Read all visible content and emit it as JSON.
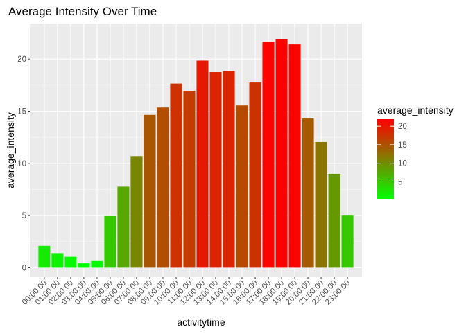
{
  "chart_data": {
    "type": "bar",
    "title": "Average Intensity Over Time",
    "xlabel": "activitytime",
    "ylabel": "average_intensity",
    "categories": [
      "00:00:00",
      "01:00:00",
      "02:00:00",
      "03:00:00",
      "04:00:00",
      "05:00:00",
      "06:00:00",
      "07:00:00",
      "08:00:00",
      "09:00:00",
      "10:00:00",
      "11:00:00",
      "12:00:00",
      "13:00:00",
      "14:00:00",
      "15:00:00",
      "16:00:00",
      "17:00:00",
      "18:00:00",
      "19:00:00",
      "20:00:00",
      "21:00:00",
      "22:00:00",
      "23:00:00"
    ],
    "values": [
      2.1,
      1.4,
      1.05,
      0.42,
      0.64,
      4.95,
      7.77,
      10.7,
      14.65,
      15.35,
      17.65,
      16.95,
      19.85,
      18.75,
      18.85,
      15.55,
      17.75,
      21.65,
      21.9,
      21.4,
      14.3,
      12.05,
      9.0,
      5.0
    ],
    "ylim": [
      -0.9,
      23.4
    ],
    "yticks": [
      0,
      5,
      10,
      15,
      20
    ],
    "grid": true,
    "legend": {
      "title": "average_intensity",
      "position": "right",
      "ticks": [
        5,
        10,
        15,
        20
      ],
      "range": [
        0.42,
        21.9
      ],
      "color_scale": [
        "#00ff00",
        "#ff0000"
      ]
    },
    "colors": {
      "panel_bg": "#ebebeb",
      "grid_major": "#ffffff",
      "axis_text": "#4d4d4d",
      "text": "#000000"
    }
  }
}
